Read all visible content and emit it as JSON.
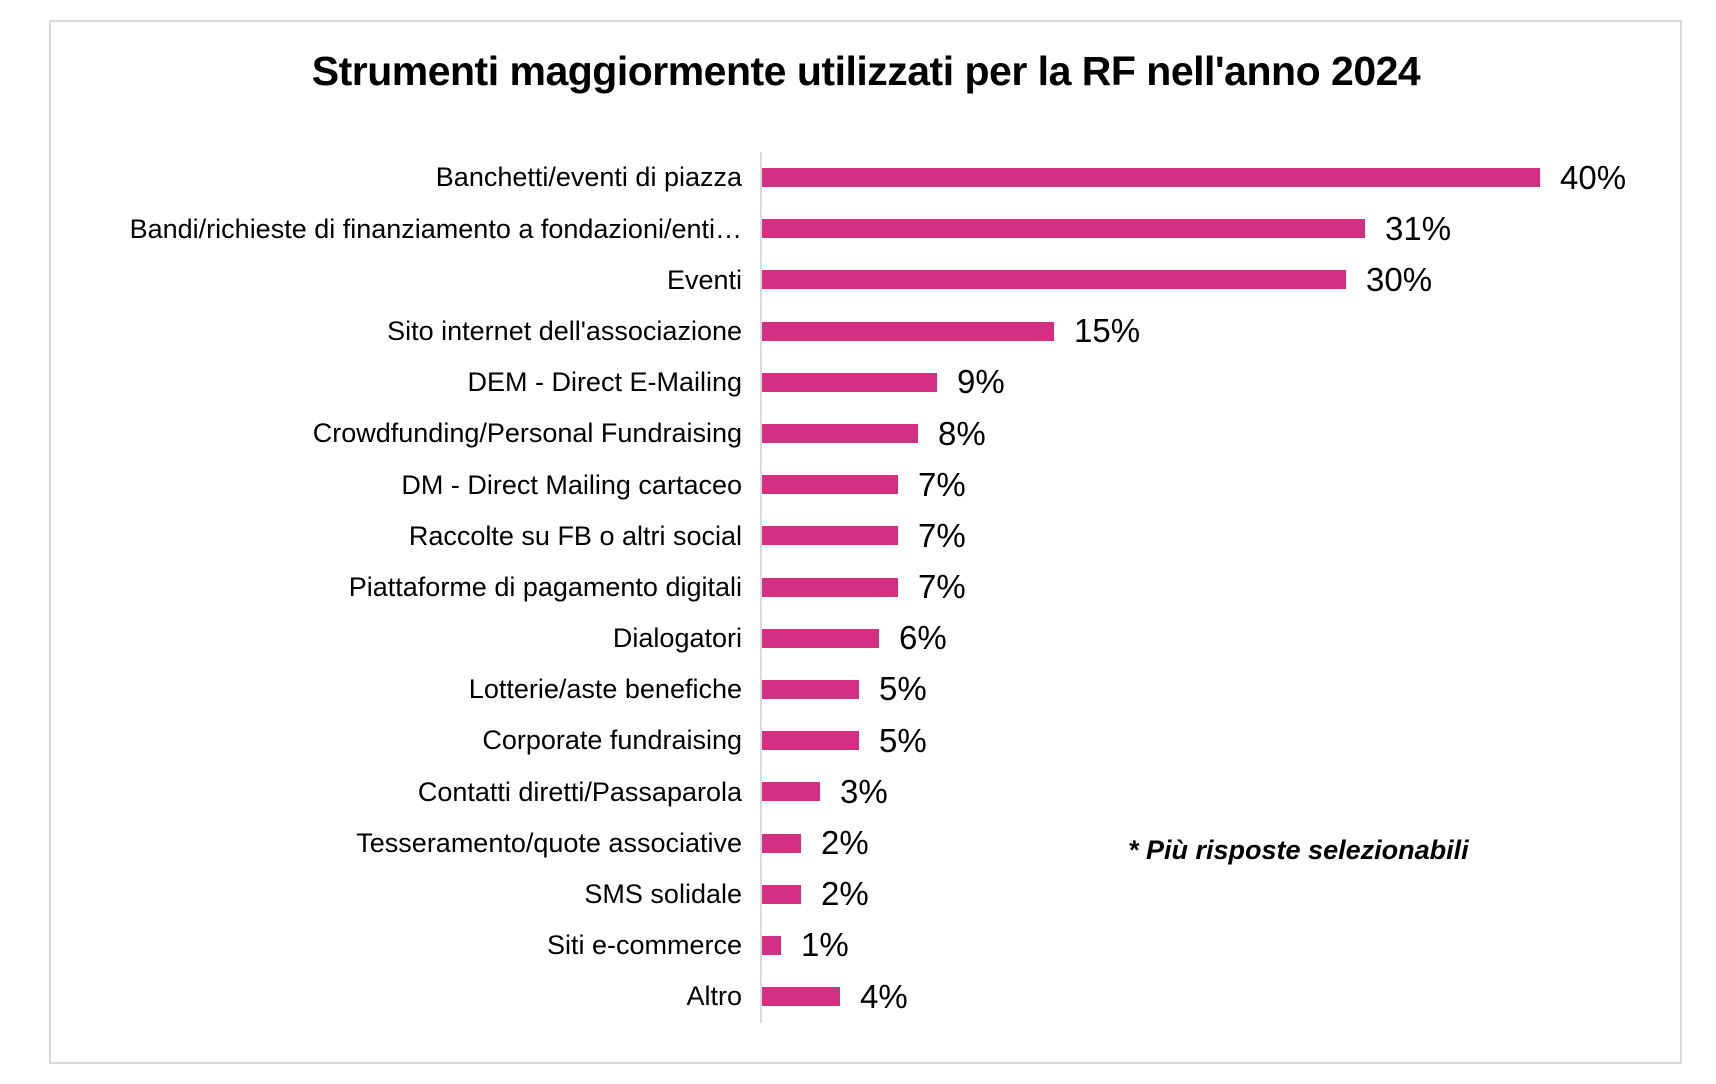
{
  "page": {
    "background": "#ffffff",
    "frame_border_color": "#d9d9d9"
  },
  "chart_data": {
    "type": "bar",
    "orientation": "horizontal",
    "title": "Strumenti maggiormente utilizzati per la RF nell'anno 2024",
    "annotation": "* Più risposte selezionabili",
    "categories": [
      "Banchetti/eventi di piazza",
      "Bandi/richieste di finanziamento a fondazioni/enti…",
      "Eventi",
      "Sito internet dell'associazione",
      "DEM - Direct E-Mailing",
      "Crowdfunding/Personal Fundraising",
      "DM - Direct Mailing cartaceo",
      "Raccolte su FB o altri social",
      "Piattaforme di pagamento digitali",
      "Dialogatori",
      "Lotterie/aste benefiche",
      "Corporate fundraising",
      "Contatti diretti/Passaparola",
      "Tesseramento/quote associative",
      "SMS solidale",
      "Siti e-commerce",
      "Altro"
    ],
    "values": [
      40,
      31,
      30,
      15,
      9,
      8,
      7,
      7,
      7,
      6,
      5,
      5,
      3,
      2,
      2,
      1,
      4
    ],
    "value_labels": [
      "40%",
      "31%",
      "30%",
      "15%",
      "9%",
      "8%",
      "7%",
      "7%",
      "7%",
      "6%",
      "5%",
      "5%",
      "3%",
      "2%",
      "2%",
      "1%",
      "4%"
    ],
    "bar_color": "#d42f82",
    "axis_color": "#d9d9d9",
    "xlim": [
      0,
      47
    ],
    "grid": false,
    "legend": false,
    "data_label_position": "outside-end"
  }
}
